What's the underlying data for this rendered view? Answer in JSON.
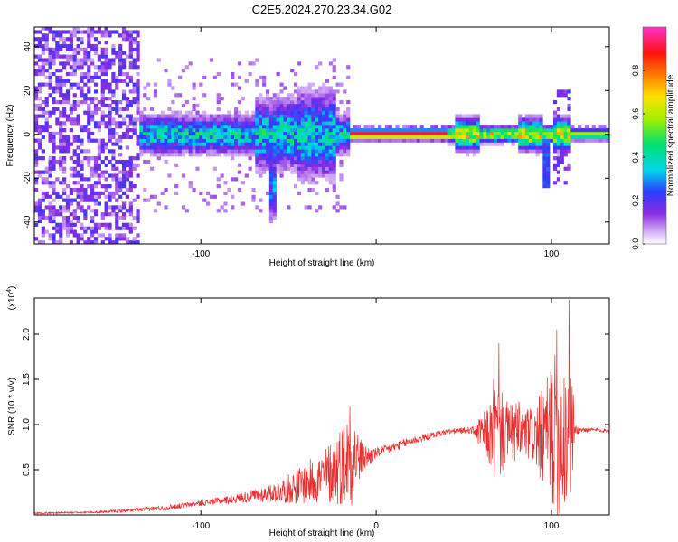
{
  "title": "C2E5.2024.270.23.34.G02",
  "chart_data": [
    {
      "type": "heatmap",
      "xlabel": "Height of straight line (km)",
      "ylabel": "Frequency (Hz)",
      "xlim": [
        -195,
        133
      ],
      "ylim": [
        -50,
        49
      ],
      "xticks": [
        -100,
        0,
        100
      ],
      "xtick_labels": [
        "-100",
        "",
        "100"
      ],
      "yticks": [
        -40,
        -20,
        0,
        20,
        40
      ],
      "colorbar": {
        "label": "Normalized spectral amplitude",
        "range": [
          0.0,
          1.0
        ],
        "ticks": [
          0.0,
          0.2,
          0.4,
          0.6,
          0.8
        ],
        "tick_labels": [
          "0.0",
          "0.2",
          "0.4",
          "0.6",
          "0.8"
        ],
        "colormap": "rainbow (white-purple-blue-cyan-green-yellow-red-magenta)"
      },
      "regions": [
        {
          "x": [
            -195,
            -135
          ],
          "description": "broadband noise across all frequencies",
          "amplitude": 0.15
        },
        {
          "x": [
            -135,
            -15
          ],
          "description": "spread around 0 Hz, up to +/-20 Hz",
          "amplitude": 0.35
        },
        {
          "x": [
            -60,
            -58
          ],
          "description": "dip down to about -45 Hz",
          "amplitude": 0.25
        },
        {
          "x": [
            -13,
            42
          ],
          "description": "narrow band at 0 Hz",
          "amplitude": 0.95
        },
        {
          "x": [
            42,
            112
          ],
          "description": "band at 0 Hz with bursts",
          "amplitude": 0.65
        },
        {
          "x": [
            112,
            133
          ],
          "description": "narrow band at 0 Hz",
          "amplitude": 0.6
        }
      ]
    },
    {
      "type": "line",
      "xlabel": "Height of straight line (km)",
      "ylabel": "SNR (10 * v/v)",
      "y_multiplier": "(x10^4)",
      "y_multiplier_base": "(x10",
      "y_multiplier_exp": "4",
      "y_multiplier_close": ")",
      "xlim": [
        -195,
        133
      ],
      "ylim": [
        0,
        2.4
      ],
      "xticks": [
        -100,
        0,
        100
      ],
      "xtick_labels": [
        "-100",
        "0",
        "100"
      ],
      "yticks": [
        0.5,
        1.0,
        1.5,
        2.0
      ],
      "ytick_labels": [
        "0.5",
        "1.0",
        "1.5",
        "2.0"
      ],
      "color": "#e83030",
      "series": [
        {
          "envelope": [
            {
              "x": -195,
              "mean": 0.02,
              "spread": 0.01
            },
            {
              "x": -160,
              "mean": 0.03,
              "spread": 0.01
            },
            {
              "x": -140,
              "mean": 0.05,
              "spread": 0.02
            },
            {
              "x": -120,
              "mean": 0.08,
              "spread": 0.03
            },
            {
              "x": -100,
              "mean": 0.13,
              "spread": 0.03
            },
            {
              "x": -80,
              "mean": 0.18,
              "spread": 0.05
            },
            {
              "x": -60,
              "mean": 0.24,
              "spread": 0.1
            },
            {
              "x": -45,
              "mean": 0.32,
              "spread": 0.2
            },
            {
              "x": -30,
              "mean": 0.42,
              "spread": 0.3
            },
            {
              "x": -20,
              "mean": 0.55,
              "spread": 0.45
            },
            {
              "x": -14,
              "mean": 0.65,
              "spread": 0.55
            },
            {
              "x": -8,
              "mean": 0.62,
              "spread": 0.18
            },
            {
              "x": 0,
              "mean": 0.68,
              "spread": 0.06
            },
            {
              "x": 20,
              "mean": 0.82,
              "spread": 0.05
            },
            {
              "x": 40,
              "mean": 0.92,
              "spread": 0.03
            },
            {
              "x": 55,
              "mean": 0.94,
              "spread": 0.04
            },
            {
              "x": 60,
              "mean": 0.9,
              "spread": 0.2
            },
            {
              "x": 65,
              "mean": 0.88,
              "spread": 0.35
            },
            {
              "x": 68,
              "mean": 0.9,
              "spread": 0.6
            },
            {
              "x": 72,
              "mean": 0.9,
              "spread": 0.45
            },
            {
              "x": 76,
              "mean": 0.92,
              "spread": 0.3
            },
            {
              "x": 80,
              "mean": 0.9,
              "spread": 0.38
            },
            {
              "x": 85,
              "mean": 0.9,
              "spread": 0.3
            },
            {
              "x": 90,
              "mean": 0.88,
              "spread": 0.32
            },
            {
              "x": 95,
              "mean": 0.85,
              "spread": 0.55
            },
            {
              "x": 100,
              "mean": 0.9,
              "spread": 0.8
            },
            {
              "x": 105,
              "mean": 0.92,
              "spread": 1.0
            },
            {
              "x": 108,
              "mean": 0.95,
              "spread": 1.1
            },
            {
              "x": 111,
              "mean": 0.95,
              "spread": 0.8
            },
            {
              "x": 114,
              "mean": 0.94,
              "spread": 0.05
            },
            {
              "x": 125,
              "mean": 0.94,
              "spread": 0.02
            },
            {
              "x": 133,
              "mean": 0.93,
              "spread": 0.02
            }
          ],
          "peaks": [
            {
              "x": -15,
              "y": 1.2
            },
            {
              "x": 67,
              "y": 1.5
            },
            {
              "x": 70,
              "y": 1.9
            },
            {
              "x": 100,
              "y": 1.55
            },
            {
              "x": 103,
              "y": 2.05
            },
            {
              "x": 110,
              "y": 2.38
            }
          ]
        }
      ]
    }
  ]
}
